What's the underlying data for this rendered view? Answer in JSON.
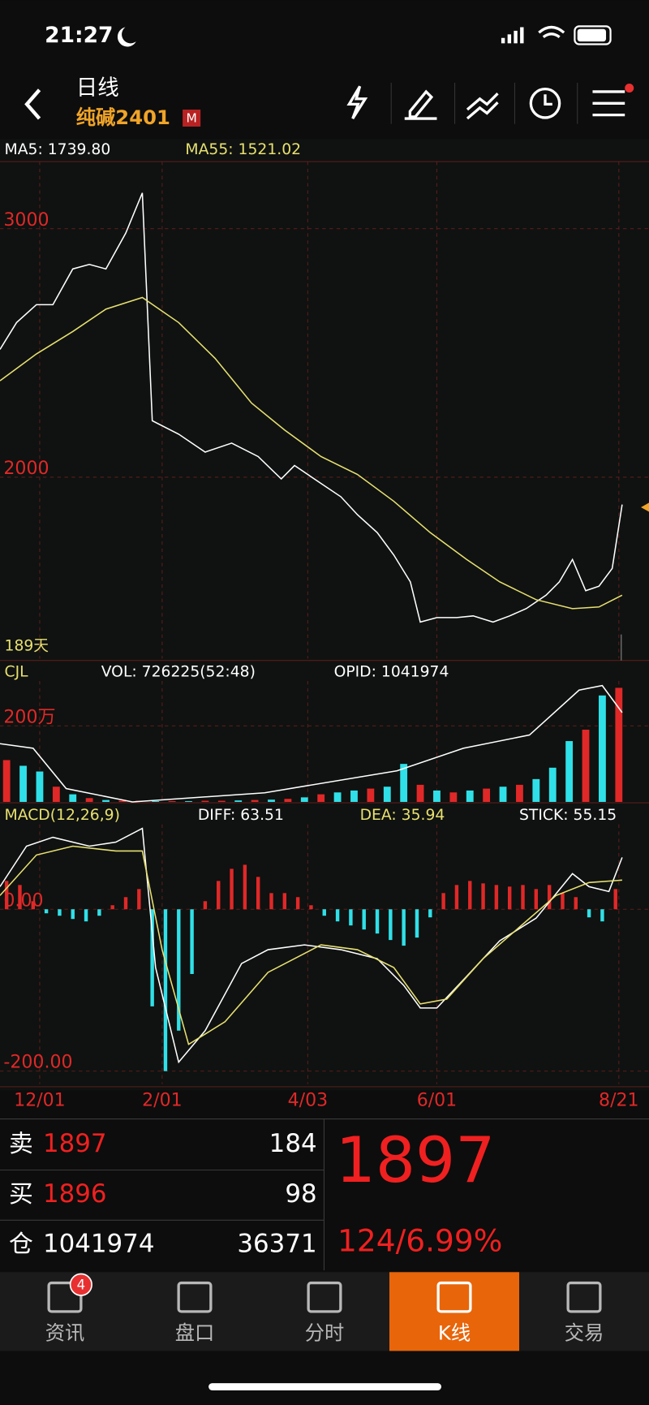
{
  "status_bar": {
    "time": "21:27"
  },
  "header": {
    "title": "日线",
    "subtitle": "纯碱2401",
    "badge": "M"
  },
  "indicators": {
    "ma5": "MA5: 1739.80",
    "ma55": "MA55: 1521.02",
    "days": "189天",
    "cjl": "CJL",
    "vol": "VOL: 726225(52:48)",
    "opid": "OPID: 1041974",
    "macd": "MACD(12,26,9)",
    "diff": "DIFF: 63.51",
    "dea": "DEA: 35.94",
    "stick": "STICK: 55.15"
  },
  "chart_data": [
    {
      "type": "line",
      "xlim": [
        0,
        188
      ],
      "ylim": [
        1270,
        3270
      ],
      "yticks": [
        2000,
        3000
      ],
      "grid": true,
      "series": [
        {
          "color": "#ffffff",
          "x": [
            0,
            5,
            11,
            16,
            22,
            27,
            32,
            38,
            43,
            46,
            54,
            62,
            70,
            78,
            85,
            89,
            97,
            103,
            108,
            114,
            119,
            124,
            127,
            132,
            138,
            143,
            149,
            154,
            159,
            165,
            169,
            173,
            177,
            181,
            185,
            188
          ],
          "values": [
            2514,
            2622,
            2694,
            2694,
            2838,
            2856,
            2838,
            2982,
            3144,
            2227,
            2173,
            2101,
            2137,
            2083,
            1993,
            2047,
            1975,
            1921,
            1849,
            1777,
            1687,
            1579,
            1417,
            1435,
            1435,
            1442,
            1417,
            1442,
            1471,
            1525,
            1579,
            1669,
            1543,
            1561,
            1633,
            1890
          ]
        },
        {
          "color": "#e8e070",
          "x": [
            0,
            11,
            22,
            32,
            43,
            54,
            65,
            76,
            86,
            97,
            108,
            119,
            130,
            141,
            151,
            162,
            173,
            181,
            188
          ],
          "values": [
            2388,
            2496,
            2586,
            2676,
            2723,
            2622,
            2478,
            2298,
            2190,
            2083,
            2011,
            1903,
            1777,
            1669,
            1579,
            1507,
            1471,
            1478,
            1525
          ]
        }
      ]
    },
    {
      "type": "bar",
      "xlim": [
        0,
        188
      ],
      "ylim": [
        0,
        318
      ],
      "yticks": [
        {
          "value": 200,
          "label": "200万"
        }
      ],
      "grid": true,
      "x": [
        2,
        7,
        12,
        17,
        22,
        27,
        32,
        37,
        42,
        47,
        52,
        57,
        62,
        67,
        72,
        77,
        82,
        87,
        92,
        97,
        102,
        107,
        112,
        117,
        122,
        127,
        132,
        137,
        142,
        147,
        152,
        157,
        162,
        167,
        172,
        177,
        182,
        187
      ],
      "values": [
        110,
        95,
        80,
        40,
        20,
        10,
        5,
        3,
        3,
        2,
        2,
        2,
        3,
        3,
        4,
        5,
        6,
        8,
        12,
        20,
        25,
        30,
        35,
        40,
        100,
        45,
        30,
        25,
        30,
        35,
        40,
        45,
        60,
        90,
        160,
        190,
        280,
        300
      ],
      "up": [
        true,
        false,
        false,
        true,
        false,
        true,
        false,
        true,
        true,
        false,
        true,
        false,
        true,
        true,
        false,
        true,
        false,
        true,
        false,
        true,
        false,
        false,
        true,
        false,
        false,
        true,
        false,
        true,
        false,
        true,
        false,
        true,
        false,
        false,
        false,
        true,
        false,
        true
      ],
      "up_color": "#e02828",
      "down_color": "#30e0e8",
      "series": [
        {
          "color": "#ffffff",
          "x": [
            0,
            10,
            20,
            40,
            80,
            120,
            140,
            160,
            175,
            182,
            188
          ],
          "values": [
            153,
            141,
            35,
            0,
            24,
            82,
            141,
            176,
            294,
            306,
            235
          ]
        }
      ]
    },
    {
      "type": "macd",
      "xlim": [
        0,
        188
      ],
      "ylim": [
        -216,
        105
      ],
      "yticks": [
        {
          "value": 0,
          "label": "0.00"
        },
        {
          "value": -200,
          "label": "-200.00"
        }
      ],
      "xticks": [
        {
          "value": 12,
          "label": "12/01"
        },
        {
          "value": 49,
          "label": "2/01"
        },
        {
          "value": 93,
          "label": "4/03"
        },
        {
          "value": 132,
          "label": "6/01"
        },
        {
          "value": 187,
          "label": "8/21"
        }
      ],
      "up_color": "#e02828",
      "down_color": "#30e0e8",
      "histogram": {
        "x": [
          2,
          6,
          10,
          14,
          18,
          22,
          26,
          30,
          34,
          38,
          42,
          46,
          50,
          54,
          58,
          62,
          66,
          70,
          74,
          78,
          82,
          86,
          90,
          94,
          98,
          102,
          106,
          110,
          114,
          118,
          122,
          126,
          130,
          134,
          138,
          142,
          146,
          150,
          154,
          158,
          162,
          166,
          170,
          174,
          178,
          182,
          186
        ],
        "values": [
          35,
          30,
          10,
          -5,
          -8,
          -12,
          -15,
          -8,
          5,
          15,
          25,
          -120,
          -200,
          -150,
          -80,
          10,
          35,
          50,
          55,
          40,
          20,
          20,
          15,
          5,
          -8,
          -15,
          -20,
          -25,
          -30,
          -38,
          -45,
          -35,
          -10,
          20,
          30,
          35,
          32,
          30,
          28,
          30,
          25,
          30,
          20,
          15,
          -10,
          -15,
          25
        ]
      },
      "series": [
        {
          "color": "#ffffff",
          "x": [
            0,
            8,
            16,
            27,
            35,
            43,
            47,
            54,
            62,
            73,
            81,
            92,
            103,
            114,
            122,
            127,
            132,
            141,
            151,
            162,
            173,
            178,
            184,
            188
          ],
          "values": [
            28,
            78,
            89,
            78,
            83,
            100,
            -72,
            -189,
            -150,
            -67,
            -50,
            -44,
            -50,
            -61,
            -94,
            -122,
            -122,
            -83,
            -39,
            -11,
            44,
            28,
            22,
            64
          ]
        },
        {
          "color": "#e8e070",
          "x": [
            0,
            11,
            22,
            35,
            43,
            49,
            57,
            68,
            81,
            97,
            108,
            119,
            127,
            135,
            146,
            157,
            168,
            178,
            188
          ],
          "values": [
            17,
            67,
            78,
            72,
            72,
            -50,
            -167,
            -139,
            -78,
            -44,
            -50,
            -72,
            -117,
            -111,
            -61,
            -22,
            17,
            33,
            36
          ]
        }
      ]
    }
  ],
  "order_book": {
    "rows": [
      [
        "卖",
        "1897",
        "184"
      ],
      [
        "买",
        "1896",
        "98"
      ],
      [
        "仓",
        "1041974",
        "36371"
      ]
    ],
    "price": "1897",
    "change": "124/6.99%"
  },
  "tabs": [
    {
      "label": "资讯",
      "badge": "4"
    },
    {
      "label": "盘口"
    },
    {
      "label": "分时"
    },
    {
      "label": "K线",
      "active": true
    },
    {
      "label": "交易"
    }
  ]
}
